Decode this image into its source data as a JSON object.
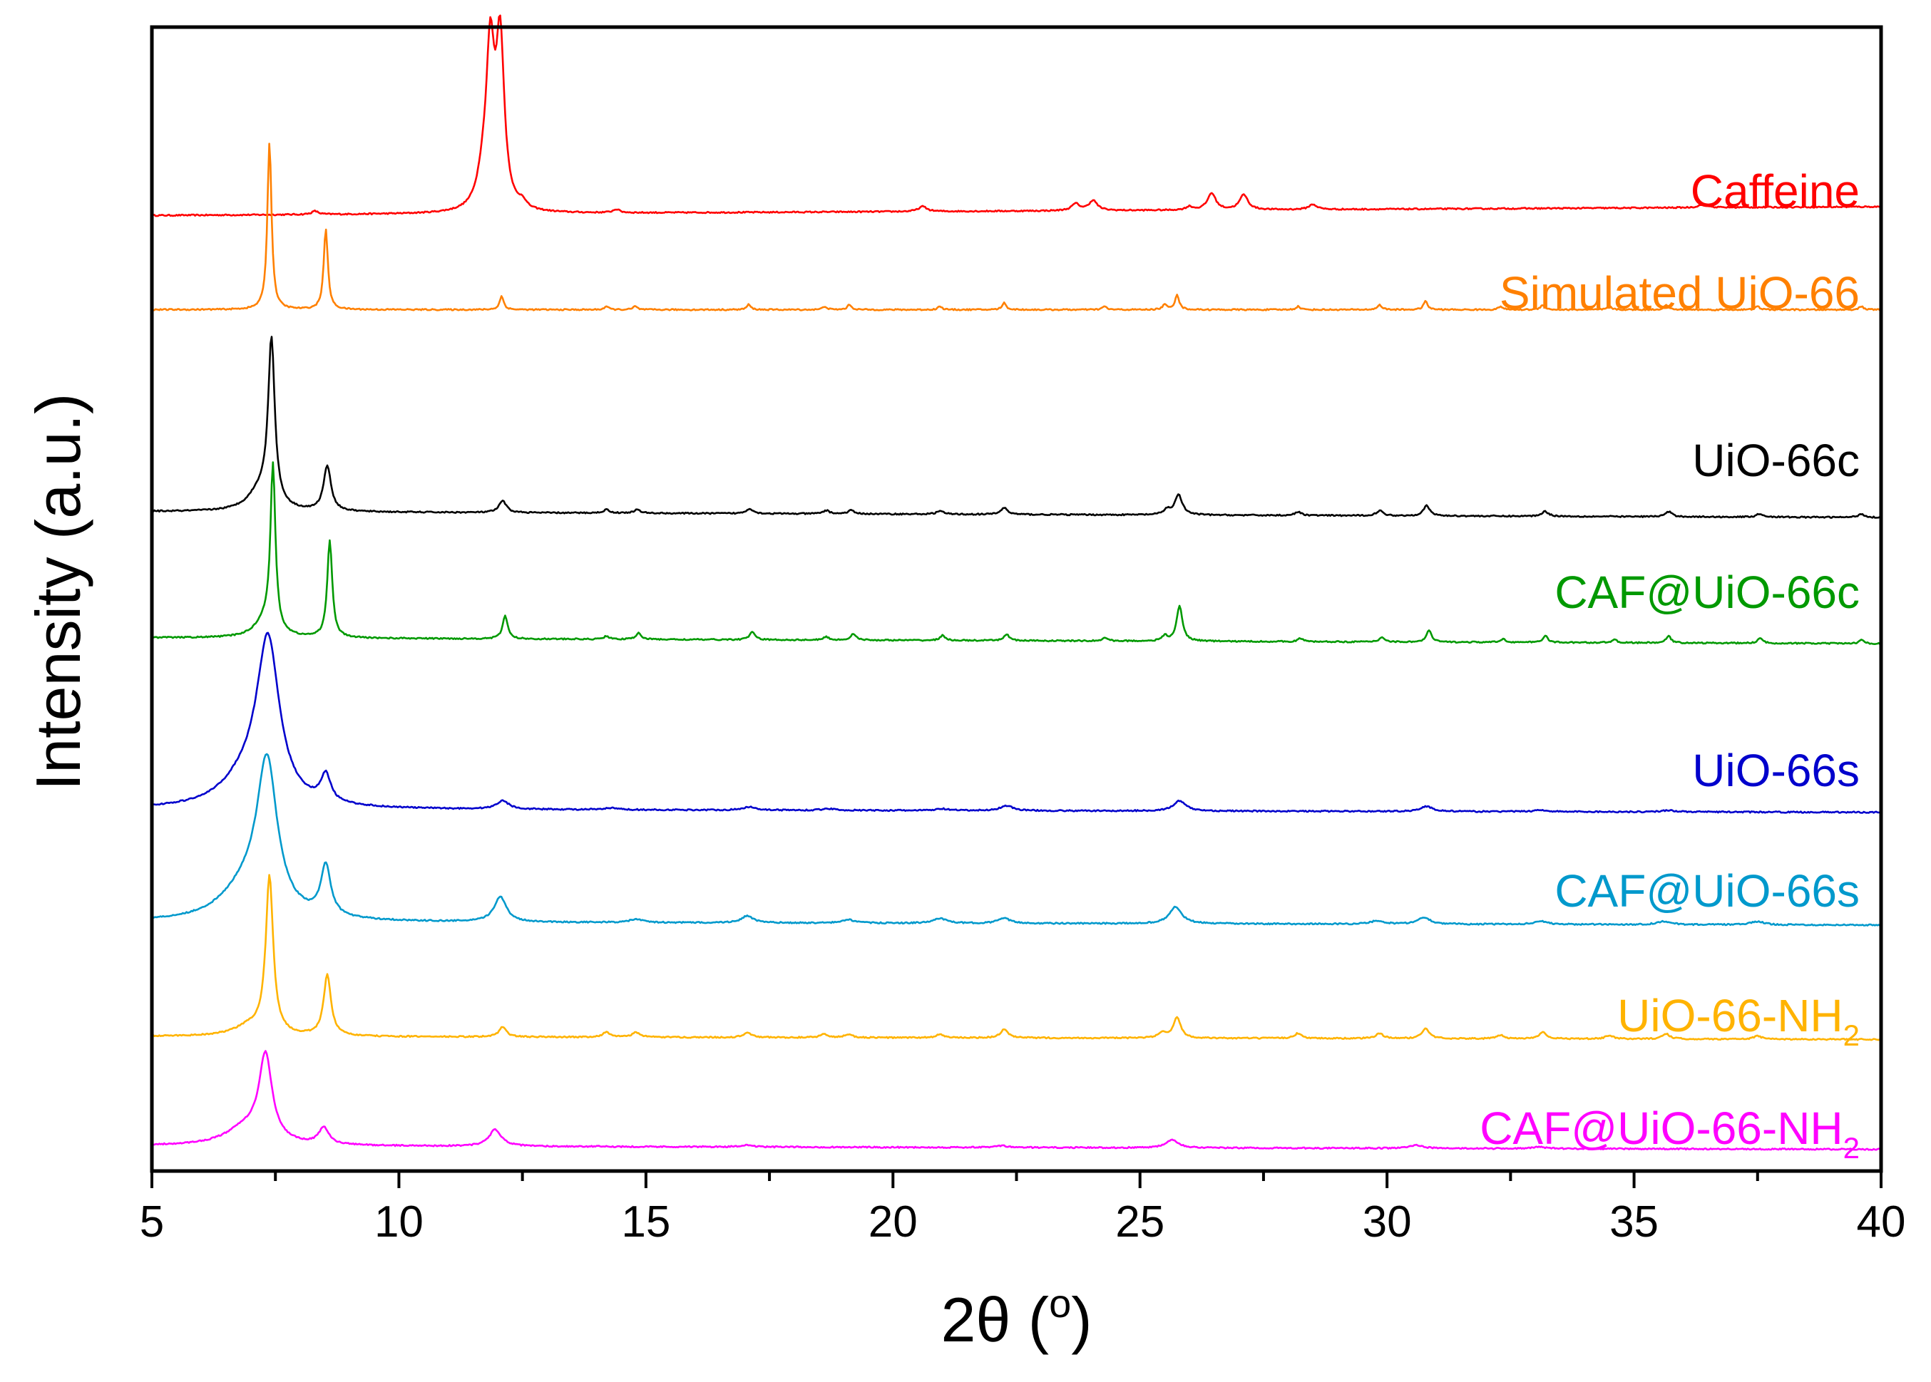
{
  "chart_data": {
    "type": "line",
    "title": "",
    "xlabel": "2θ (°)",
    "xlabel_parts": {
      "main": "2θ (",
      "sup": "o",
      "end": ")"
    },
    "ylabel": "Intensity (a.u.)",
    "xlim": [
      5,
      40
    ],
    "x_ticks": [
      5,
      10,
      15,
      20,
      25,
      30,
      35,
      40
    ],
    "x_tick_labels": [
      "5",
      "10",
      "15",
      "20",
      "25",
      "30",
      "35",
      "40"
    ],
    "y_ticks": [],
    "y_range_description": "arbitrary units, stacked offset traces",
    "grid": false,
    "legend": "inline labels on right",
    "series": [
      {
        "name": "Caffeine",
        "label_main": "Caffeine",
        "label_sub": "",
        "color": "#ff0000",
        "baseline": 7.38,
        "slope": 0.0015,
        "peaks": [
          {
            "x": 11.85,
            "h": 0.9,
            "w": 0.1
          },
          {
            "x": 12.05,
            "h": 0.98,
            "w": 0.1
          },
          {
            "x": 11.7,
            "h": 0.15,
            "w": 0.14
          },
          {
            "x": 12.5,
            "h": 0.04,
            "w": 0.08
          },
          {
            "x": 8.3,
            "h": 0.02,
            "w": 0.08
          },
          {
            "x": 14.4,
            "h": 0.02,
            "w": 0.08
          },
          {
            "x": 20.6,
            "h": 0.03,
            "w": 0.1
          },
          {
            "x": 23.7,
            "h": 0.04,
            "w": 0.1
          },
          {
            "x": 24.05,
            "h": 0.06,
            "w": 0.1
          },
          {
            "x": 26.0,
            "h": 0.02,
            "w": 0.08
          },
          {
            "x": 26.45,
            "h": 0.1,
            "w": 0.1
          },
          {
            "x": 27.1,
            "h": 0.09,
            "w": 0.1
          },
          {
            "x": 28.5,
            "h": 0.03,
            "w": 0.1
          },
          {
            "x": 36.4,
            "h": 0.02,
            "w": 0.1
          }
        ]
      },
      {
        "name": "Simulated UiO-66",
        "label_main": "Simulated UiO-66",
        "label_sub": "",
        "color": "#ff8000",
        "baseline": 6.82,
        "slope": 0.0,
        "peaks": [
          {
            "x": 7.38,
            "h": 1.0,
            "w": 0.05
          },
          {
            "x": 8.52,
            "h": 0.48,
            "w": 0.05
          },
          {
            "x": 12.08,
            "h": 0.08,
            "w": 0.05
          },
          {
            "x": 14.2,
            "h": 0.02,
            "w": 0.05
          },
          {
            "x": 14.78,
            "h": 0.02,
            "w": 0.05
          },
          {
            "x": 17.08,
            "h": 0.03,
            "w": 0.05
          },
          {
            "x": 18.62,
            "h": 0.02,
            "w": 0.05
          },
          {
            "x": 19.12,
            "h": 0.03,
            "w": 0.05
          },
          {
            "x": 20.95,
            "h": 0.02,
            "w": 0.05
          },
          {
            "x": 22.25,
            "h": 0.04,
            "w": 0.05
          },
          {
            "x": 24.28,
            "h": 0.02,
            "w": 0.05
          },
          {
            "x": 25.5,
            "h": 0.03,
            "w": 0.05
          },
          {
            "x": 25.75,
            "h": 0.09,
            "w": 0.05
          },
          {
            "x": 28.2,
            "h": 0.02,
            "w": 0.05
          },
          {
            "x": 29.85,
            "h": 0.03,
            "w": 0.05
          },
          {
            "x": 30.78,
            "h": 0.05,
            "w": 0.05
          },
          {
            "x": 32.3,
            "h": 0.02,
            "w": 0.05
          },
          {
            "x": 33.15,
            "h": 0.03,
            "w": 0.05
          },
          {
            "x": 34.5,
            "h": 0.02,
            "w": 0.05
          },
          {
            "x": 35.65,
            "h": 0.03,
            "w": 0.05
          },
          {
            "x": 37.5,
            "h": 0.02,
            "w": 0.05
          },
          {
            "x": 39.6,
            "h": 0.02,
            "w": 0.05
          }
        ]
      },
      {
        "name": "UiO-66c",
        "label_main": "UiO-66c",
        "label_sub": "",
        "color": "#000000",
        "baseline": 5.62,
        "slope": -0.001,
        "peaks": [
          {
            "x": 7.42,
            "h": 0.97,
            "w": 0.08
          },
          {
            "x": 7.2,
            "h": 0.12,
            "w": 0.3
          },
          {
            "x": 8.55,
            "h": 0.27,
            "w": 0.09
          },
          {
            "x": 12.1,
            "h": 0.07,
            "w": 0.09
          },
          {
            "x": 14.2,
            "h": 0.02,
            "w": 0.08
          },
          {
            "x": 14.82,
            "h": 0.02,
            "w": 0.08
          },
          {
            "x": 17.1,
            "h": 0.03,
            "w": 0.08
          },
          {
            "x": 18.65,
            "h": 0.02,
            "w": 0.08
          },
          {
            "x": 19.15,
            "h": 0.02,
            "w": 0.08
          },
          {
            "x": 20.95,
            "h": 0.02,
            "w": 0.08
          },
          {
            "x": 22.25,
            "h": 0.04,
            "w": 0.08
          },
          {
            "x": 25.55,
            "h": 0.03,
            "w": 0.08
          },
          {
            "x": 25.78,
            "h": 0.12,
            "w": 0.09
          },
          {
            "x": 28.2,
            "h": 0.02,
            "w": 0.08
          },
          {
            "x": 29.85,
            "h": 0.03,
            "w": 0.08
          },
          {
            "x": 30.8,
            "h": 0.06,
            "w": 0.08
          },
          {
            "x": 33.2,
            "h": 0.03,
            "w": 0.08
          },
          {
            "x": 35.7,
            "h": 0.03,
            "w": 0.08
          },
          {
            "x": 37.55,
            "h": 0.02,
            "w": 0.08
          },
          {
            "x": 39.6,
            "h": 0.02,
            "w": 0.08
          }
        ]
      },
      {
        "name": "CAF@UiO-66c",
        "label_main": "CAF@UiO-66c",
        "label_sub": "",
        "color": "#009900",
        "baseline": 4.87,
        "slope": -0.001,
        "peaks": [
          {
            "x": 7.45,
            "h": 0.97,
            "w": 0.06
          },
          {
            "x": 7.3,
            "h": 0.1,
            "w": 0.25
          },
          {
            "x": 8.6,
            "h": 0.58,
            "w": 0.06
          },
          {
            "x": 12.15,
            "h": 0.14,
            "w": 0.06
          },
          {
            "x": 14.2,
            "h": 0.02,
            "w": 0.06
          },
          {
            "x": 14.85,
            "h": 0.04,
            "w": 0.06
          },
          {
            "x": 17.15,
            "h": 0.05,
            "w": 0.06
          },
          {
            "x": 18.65,
            "h": 0.02,
            "w": 0.06
          },
          {
            "x": 19.2,
            "h": 0.04,
            "w": 0.06
          },
          {
            "x": 21.0,
            "h": 0.03,
            "w": 0.06
          },
          {
            "x": 22.3,
            "h": 0.04,
            "w": 0.06
          },
          {
            "x": 24.3,
            "h": 0.02,
            "w": 0.06
          },
          {
            "x": 25.5,
            "h": 0.03,
            "w": 0.06
          },
          {
            "x": 25.8,
            "h": 0.21,
            "w": 0.07
          },
          {
            "x": 28.25,
            "h": 0.02,
            "w": 0.06
          },
          {
            "x": 29.9,
            "h": 0.03,
            "w": 0.06
          },
          {
            "x": 30.85,
            "h": 0.07,
            "w": 0.06
          },
          {
            "x": 32.35,
            "h": 0.02,
            "w": 0.06
          },
          {
            "x": 33.2,
            "h": 0.04,
            "w": 0.06
          },
          {
            "x": 34.6,
            "h": 0.02,
            "w": 0.06
          },
          {
            "x": 35.7,
            "h": 0.04,
            "w": 0.06
          },
          {
            "x": 37.55,
            "h": 0.03,
            "w": 0.06
          },
          {
            "x": 39.6,
            "h": 0.02,
            "w": 0.06
          }
        ]
      },
      {
        "name": "UiO-66s",
        "label_main": "UiO-66s",
        "label_sub": "",
        "color": "#0000cc",
        "baseline": 3.85,
        "slope": -0.0005,
        "peaks": [
          {
            "x": 7.35,
            "h": 0.95,
            "w": 0.28
          },
          {
            "x": 6.9,
            "h": 0.15,
            "w": 0.6
          },
          {
            "x": 8.52,
            "h": 0.16,
            "w": 0.12
          },
          {
            "x": 12.1,
            "h": 0.05,
            "w": 0.15
          },
          {
            "x": 14.3,
            "h": 0.01,
            "w": 0.15
          },
          {
            "x": 17.1,
            "h": 0.02,
            "w": 0.15
          },
          {
            "x": 18.7,
            "h": 0.01,
            "w": 0.15
          },
          {
            "x": 21.0,
            "h": 0.01,
            "w": 0.15
          },
          {
            "x": 22.3,
            "h": 0.03,
            "w": 0.15
          },
          {
            "x": 25.8,
            "h": 0.06,
            "w": 0.15
          },
          {
            "x": 30.8,
            "h": 0.03,
            "w": 0.15
          },
          {
            "x": 33.1,
            "h": 0.01,
            "w": 0.15
          },
          {
            "x": 35.7,
            "h": 0.01,
            "w": 0.15
          }
        ]
      },
      {
        "name": "CAF@UiO-66s",
        "label_main": "CAF@UiO-66s",
        "label_sub": "",
        "color": "#0099cc",
        "baseline": 3.18,
        "slope": -0.0005,
        "peaks": [
          {
            "x": 7.33,
            "h": 0.88,
            "w": 0.25
          },
          {
            "x": 6.9,
            "h": 0.18,
            "w": 0.6
          },
          {
            "x": 8.52,
            "h": 0.3,
            "w": 0.12
          },
          {
            "x": 12.05,
            "h": 0.15,
            "w": 0.15
          },
          {
            "x": 14.8,
            "h": 0.02,
            "w": 0.15
          },
          {
            "x": 17.05,
            "h": 0.04,
            "w": 0.15
          },
          {
            "x": 19.1,
            "h": 0.02,
            "w": 0.15
          },
          {
            "x": 20.95,
            "h": 0.03,
            "w": 0.15
          },
          {
            "x": 22.25,
            "h": 0.03,
            "w": 0.15
          },
          {
            "x": 25.72,
            "h": 0.1,
            "w": 0.15
          },
          {
            "x": 29.8,
            "h": 0.02,
            "w": 0.15
          },
          {
            "x": 30.75,
            "h": 0.04,
            "w": 0.15
          },
          {
            "x": 33.1,
            "h": 0.02,
            "w": 0.15
          },
          {
            "x": 35.6,
            "h": 0.02,
            "w": 0.15
          },
          {
            "x": 37.5,
            "h": 0.02,
            "w": 0.15
          }
        ]
      },
      {
        "name": "UiO-66-NH2",
        "label_main": "UiO-66-NH",
        "label_sub": "2",
        "color": "#ffb300",
        "baseline": 2.5,
        "slope": -0.0005,
        "peaks": [
          {
            "x": 7.38,
            "h": 0.93,
            "w": 0.09
          },
          {
            "x": 7.0,
            "h": 0.06,
            "w": 0.4
          },
          {
            "x": 8.55,
            "h": 0.36,
            "w": 0.09
          },
          {
            "x": 12.1,
            "h": 0.06,
            "w": 0.09
          },
          {
            "x": 14.2,
            "h": 0.03,
            "w": 0.09
          },
          {
            "x": 14.8,
            "h": 0.03,
            "w": 0.09
          },
          {
            "x": 17.05,
            "h": 0.03,
            "w": 0.09
          },
          {
            "x": 18.6,
            "h": 0.02,
            "w": 0.09
          },
          {
            "x": 19.1,
            "h": 0.02,
            "w": 0.09
          },
          {
            "x": 20.95,
            "h": 0.02,
            "w": 0.09
          },
          {
            "x": 22.25,
            "h": 0.05,
            "w": 0.09
          },
          {
            "x": 25.45,
            "h": 0.03,
            "w": 0.09
          },
          {
            "x": 25.75,
            "h": 0.12,
            "w": 0.09
          },
          {
            "x": 28.2,
            "h": 0.03,
            "w": 0.09
          },
          {
            "x": 29.85,
            "h": 0.03,
            "w": 0.09
          },
          {
            "x": 30.78,
            "h": 0.06,
            "w": 0.09
          },
          {
            "x": 32.3,
            "h": 0.02,
            "w": 0.09
          },
          {
            "x": 33.15,
            "h": 0.04,
            "w": 0.09
          },
          {
            "x": 34.5,
            "h": 0.02,
            "w": 0.09
          },
          {
            "x": 35.65,
            "h": 0.03,
            "w": 0.09
          },
          {
            "x": 37.5,
            "h": 0.02,
            "w": 0.09
          }
        ]
      },
      {
        "name": "CAF@UiO-66-NH2",
        "label_main": "CAF@UiO-66-NH",
        "label_sub": "2",
        "color": "#ff00ff",
        "baseline": 1.85,
        "slope": -0.0006,
        "peaks": [
          {
            "x": 7.3,
            "h": 0.5,
            "w": 0.16
          },
          {
            "x": 6.9,
            "h": 0.1,
            "w": 0.5
          },
          {
            "x": 8.48,
            "h": 0.1,
            "w": 0.12
          },
          {
            "x": 11.95,
            "h": 0.1,
            "w": 0.15
          },
          {
            "x": 17.0,
            "h": 0.01,
            "w": 0.15
          },
          {
            "x": 22.2,
            "h": 0.01,
            "w": 0.15
          },
          {
            "x": 25.65,
            "h": 0.05,
            "w": 0.15
          },
          {
            "x": 30.6,
            "h": 0.02,
            "w": 0.15
          },
          {
            "x": 33.1,
            "h": 0.01,
            "w": 0.15
          }
        ]
      }
    ]
  }
}
